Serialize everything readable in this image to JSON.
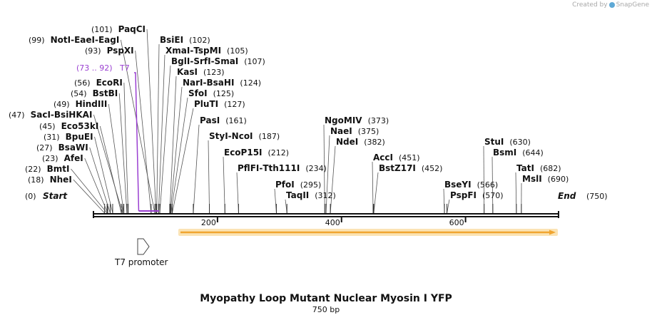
{
  "credit": {
    "created_by": "Created by",
    "brand": "SnapGene"
  },
  "title": "Myopathy Loop Mutant Nuclear Myosin I YFP",
  "subtitle": "750 bp",
  "sequence_length": 750,
  "ticks": [
    "200",
    "400",
    "600"
  ],
  "tick_values": [
    200,
    400,
    600
  ],
  "ends": {
    "start_label": "Start",
    "start_pos": "(0)",
    "end_label": "End",
    "end_pos": "(750)"
  },
  "feature": {
    "label": "T7",
    "range": "(73 .. 92)",
    "start": 73,
    "end": 92
  },
  "promoter": {
    "label": "T7 promoter"
  },
  "enzymes": [
    {
      "row": "r1",
      "pos": "(18)",
      "names": [
        "NheI"
      ],
      "cut": 18
    },
    {
      "row": "r2",
      "pos": "(22)",
      "names": [
        "BmtI"
      ],
      "cut": 22
    },
    {
      "row": "r3",
      "pos": "(23)",
      "names": [
        "AfeI"
      ],
      "cut": 23
    },
    {
      "row": "r4",
      "pos": "(27)",
      "names": [
        "BsaWI"
      ],
      "cut": 27
    },
    {
      "row": "r5",
      "pos": "(31)",
      "names": [
        "BpuEI"
      ],
      "cut": 31
    },
    {
      "row": "r6",
      "pos": "(45)",
      "names": [
        "Eco53kI"
      ],
      "cut": 45
    },
    {
      "row": "r7",
      "pos": "(47)",
      "names": [
        "SacI",
        "BsiHKAI"
      ],
      "cut": 47
    },
    {
      "row": "r8",
      "pos": "(49)",
      "names": [
        "HindIII"
      ],
      "cut": 49
    },
    {
      "row": "r9",
      "pos": "(54)",
      "names": [
        "BstBI"
      ],
      "cut": 54
    },
    {
      "row": "r10",
      "pos": "(56)",
      "names": [
        "EcoRI"
      ],
      "cut": 56
    },
    {
      "row": "r11",
      "pos": "(93)",
      "names": [
        "PspXI"
      ],
      "cut": 93
    },
    {
      "row": "r12",
      "pos": "(99)",
      "names": [
        "NotI",
        "EaeI",
        "EagI"
      ],
      "cut": 99
    },
    {
      "row": "r13",
      "pos": "(101)",
      "names": [
        "PaqCI"
      ],
      "cut": 101
    },
    {
      "row": "r14",
      "pos": "(102)",
      "names": [
        "BsiEI"
      ],
      "cut": 102
    },
    {
      "row": "r15",
      "pos": "(105)",
      "names": [
        "XmaI",
        "TspMI"
      ],
      "cut": 105
    },
    {
      "row": "r16",
      "pos": "(107)",
      "names": [
        "BglI",
        "SrfI",
        "SmaI"
      ],
      "cut": 107
    },
    {
      "row": "r17",
      "pos": "(123)",
      "names": [
        "KasI"
      ],
      "cut": 123
    },
    {
      "row": "r18",
      "pos": "(124)",
      "names": [
        "NarI",
        "BsaHI"
      ],
      "cut": 124
    },
    {
      "row": "r19",
      "pos": "(125)",
      "names": [
        "SfoI"
      ],
      "cut": 125
    },
    {
      "row": "r20",
      "pos": "(127)",
      "names": [
        "PluTI"
      ],
      "cut": 127
    },
    {
      "row": "r21",
      "pos": "(161)",
      "names": [
        "PasI"
      ],
      "cut": 161
    },
    {
      "row": "r22",
      "pos": "(187)",
      "names": [
        "StyI",
        "NcoI"
      ],
      "cut": 187
    },
    {
      "row": "r23",
      "pos": "(212)",
      "names": [
        "EcoP15I"
      ],
      "cut": 212
    },
    {
      "row": "r24",
      "pos": "(234)",
      "names": [
        "PflFI",
        "Tth111I"
      ],
      "cut": 234
    },
    {
      "row": "r25",
      "pos": "(295)",
      "names": [
        "PfoI"
      ],
      "cut": 295
    },
    {
      "row": "r26",
      "pos": "(312)",
      "names": [
        "TaqII"
      ],
      "cut": 312
    },
    {
      "row": "r27",
      "pos": "(373)",
      "names": [
        "NgoMIV"
      ],
      "cut": 373
    },
    {
      "row": "r28",
      "pos": "(375)",
      "names": [
        "NaeI"
      ],
      "cut": 375
    },
    {
      "row": "r29",
      "pos": "(382)",
      "names": [
        "NdeI"
      ],
      "cut": 382
    },
    {
      "row": "r30",
      "pos": "(451)",
      "names": [
        "AccI"
      ],
      "cut": 451
    },
    {
      "row": "r31",
      "pos": "(452)",
      "names": [
        "BstZ17I"
      ],
      "cut": 452
    },
    {
      "row": "r32",
      "pos": "(566)",
      "names": [
        "BseYI"
      ],
      "cut": 566
    },
    {
      "row": "r33",
      "pos": "(570)",
      "names": [
        "PspFI"
      ],
      "cut": 570
    },
    {
      "row": "r34",
      "pos": "(630)",
      "names": [
        "StuI"
      ],
      "cut": 630
    },
    {
      "row": "r35",
      "pos": "(644)",
      "names": [
        "BsmI"
      ],
      "cut": 644
    },
    {
      "row": "r36",
      "pos": "(682)",
      "names": [
        "TatI"
      ],
      "cut": 682
    },
    {
      "row": "r37",
      "pos": "(690)",
      "names": [
        "MslI"
      ],
      "cut": 690
    }
  ],
  "colors": {
    "feature": "#9a3fd1",
    "orf_fill": "#f0a530",
    "orf_glow": "#fbe3b4",
    "line": "#111111",
    "leader": "#555555"
  }
}
